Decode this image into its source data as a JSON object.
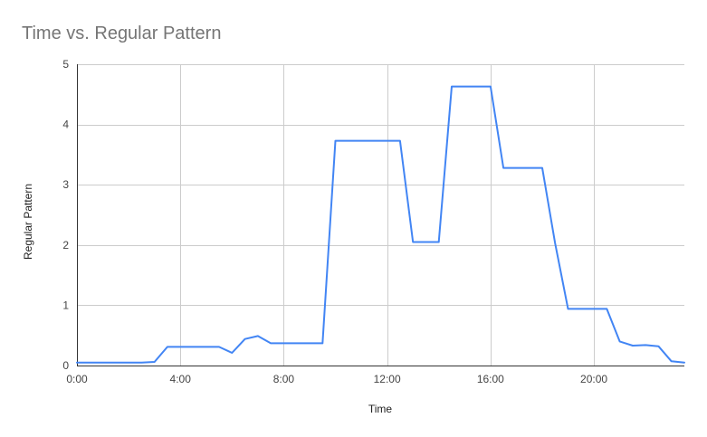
{
  "chart_data": {
    "type": "line",
    "title": "Time vs. Regular Pattern",
    "xlabel": "Time",
    "ylabel": "Regular Pattern",
    "x_ticks": [
      "0:00",
      "4:00",
      "8:00",
      "12:00",
      "16:00",
      "20:00"
    ],
    "x_tick_hours": [
      0,
      4,
      8,
      12,
      16,
      20
    ],
    "xlim": [
      0,
      23.5
    ],
    "y_ticks": [
      "0",
      "1",
      "2",
      "3",
      "4",
      "5"
    ],
    "ylim": [
      0,
      5
    ],
    "grid": true,
    "legend": "none",
    "series": [
      {
        "color": "#4285f4",
        "x": [
          "0:00",
          "0:30",
          "1:00",
          "1:30",
          "2:00",
          "2:30",
          "3:00",
          "3:30",
          "4:00",
          "4:30",
          "5:00",
          "5:30",
          "6:00",
          "6:30",
          "7:00",
          "7:30",
          "8:00",
          "8:30",
          "9:00",
          "9:30",
          "10:00",
          "10:30",
          "11:00",
          "11:30",
          "12:00",
          "12:30",
          "13:00",
          "13:30",
          "14:00",
          "14:30",
          "15:00",
          "15:30",
          "16:00",
          "16:30",
          "17:00",
          "17:30",
          "18:00",
          "18:30",
          "19:00",
          "19:30",
          "20:00",
          "20:30",
          "21:00",
          "21:30",
          "22:00",
          "22:30",
          "23:00",
          "23:30"
        ],
        "values": [
          0.05,
          0.05,
          0.05,
          0.05,
          0.05,
          0.05,
          0.06,
          0.31,
          0.31,
          0.31,
          0.31,
          0.31,
          0.21,
          0.44,
          0.49,
          0.37,
          0.37,
          0.37,
          0.37,
          0.37,
          3.73,
          3.73,
          3.73,
          3.73,
          3.73,
          3.73,
          2.05,
          2.05,
          2.05,
          4.63,
          4.63,
          4.63,
          4.63,
          3.28,
          3.28,
          3.28,
          3.28,
          2.03,
          0.94,
          0.94,
          0.94,
          0.94,
          0.4,
          0.33,
          0.34,
          0.32,
          0.07,
          0.05
        ]
      }
    ]
  }
}
